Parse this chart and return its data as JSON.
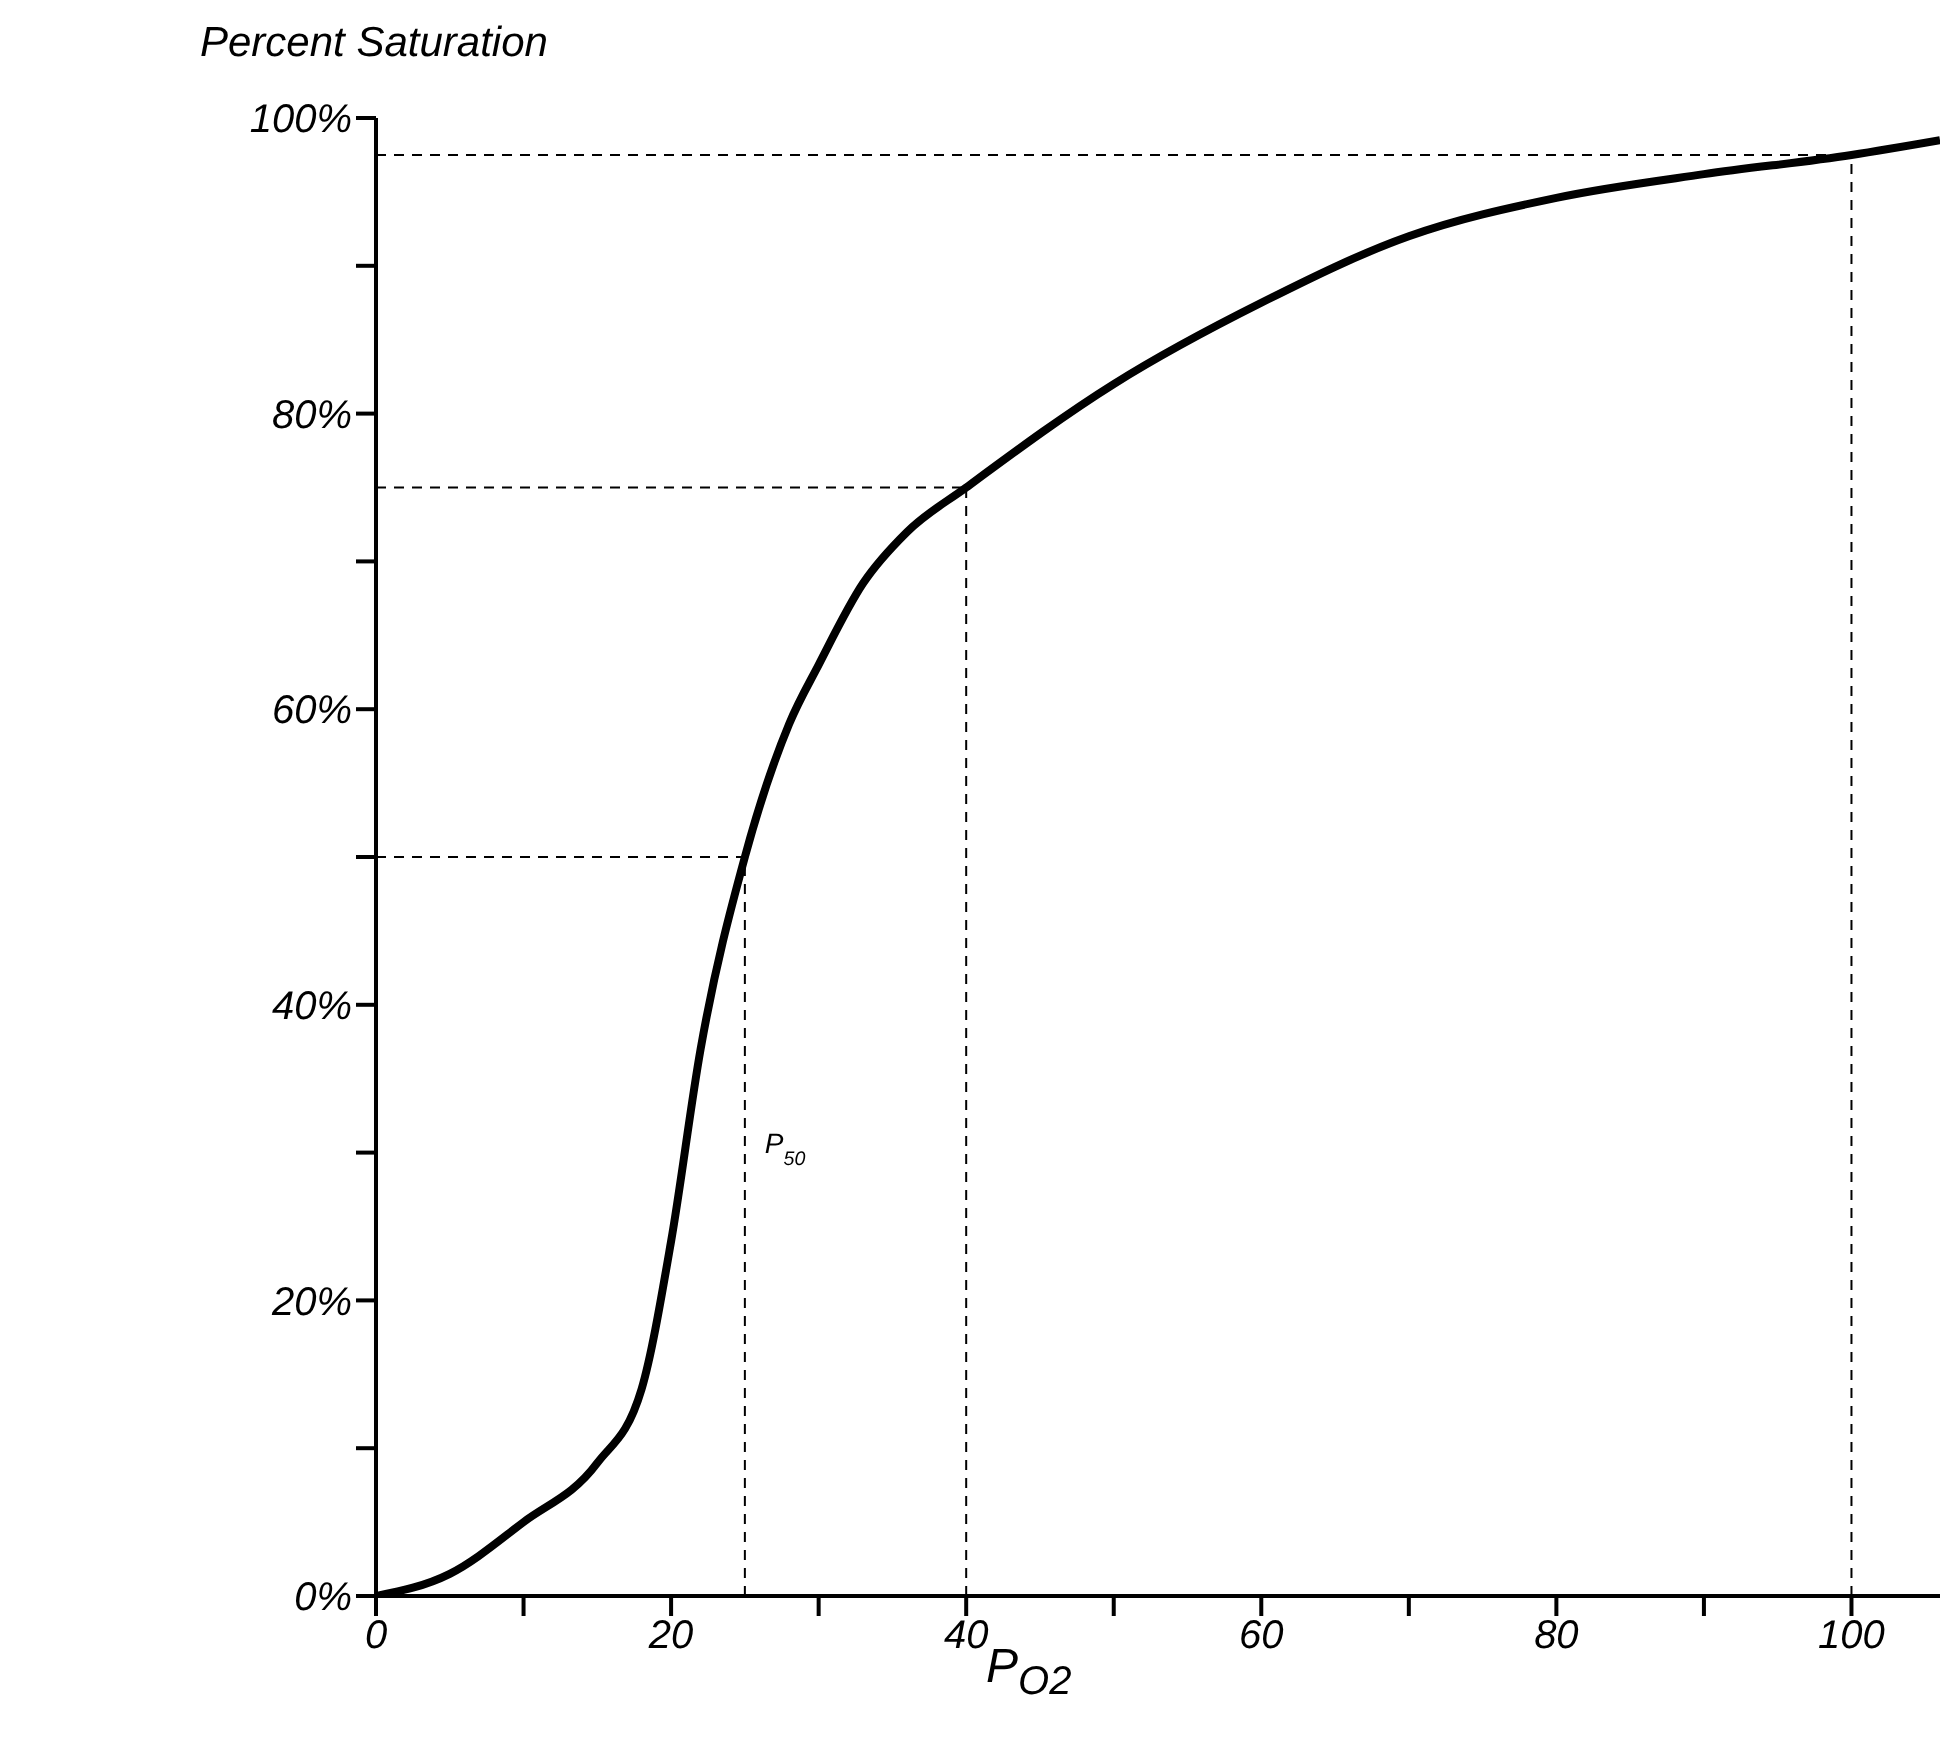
{
  "chart_data": {
    "type": "line",
    "xlabel": "P$_{O2}$",
    "ylabel": "Percent Saturation",
    "x": [
      0,
      5,
      10,
      15,
      18,
      20,
      22,
      25,
      28,
      30,
      33,
      36,
      40,
      50,
      60,
      70,
      80,
      90,
      100,
      106
    ],
    "series": [
      {
        "color": "#000000",
        "values": [
          0,
          1.5,
          5,
          9,
          14,
          24,
          37,
          50,
          59,
          63,
          68.5,
          72,
          75,
          82,
          87.5,
          92,
          94.6,
          96.2,
          97.5,
          98.5
        ]
      }
    ],
    "xlim": [
      0,
      106
    ],
    "ylim": [
      0,
      100
    ],
    "xticks": [
      0,
      {
        "value": 10,
        "label": null
      },
      20,
      {
        "value": 30,
        "label": null
      },
      40,
      {
        "value": 50,
        "label": null
      },
      60,
      {
        "value": 70,
        "label": null
      },
      80,
      {
        "value": 90,
        "label": null
      },
      100
    ],
    "yticks": [
      {
        "value": 0,
        "label": "0%"
      },
      {
        "value": 10,
        "label": null
      },
      {
        "value": 20,
        "label": "20%"
      },
      {
        "value": 30,
        "label": null
      },
      {
        "value": 40,
        "label": "40%"
      },
      {
        "value": 50,
        "label": null
      },
      {
        "value": 60,
        "label": "60%"
      },
      {
        "value": 70,
        "label": null
      },
      {
        "value": 80,
        "label": "80%"
      },
      {
        "value": 90,
        "label": null
      },
      {
        "value": 100,
        "label": "100%"
      }
    ],
    "ref_lines": [
      {
        "axis": "y",
        "value": 50,
        "line_style": "dashed"
      },
      {
        "axis": "x",
        "value": 25,
        "label": "P$_{50}$",
        "line_style": "dashed"
      },
      {
        "axis": "y",
        "value": 75,
        "line_style": "dashed"
      },
      {
        "axis": "x",
        "value": 40,
        "line_style": "dashed"
      },
      {
        "axis": "y",
        "value": 97.5,
        "line_style": "dashed"
      },
      {
        "axis": "x",
        "value": 100,
        "line_style": "dashed"
      }
    ],
    "grid": false,
    "legend": false,
    "marker": "none",
    "line_style": "solid"
  }
}
